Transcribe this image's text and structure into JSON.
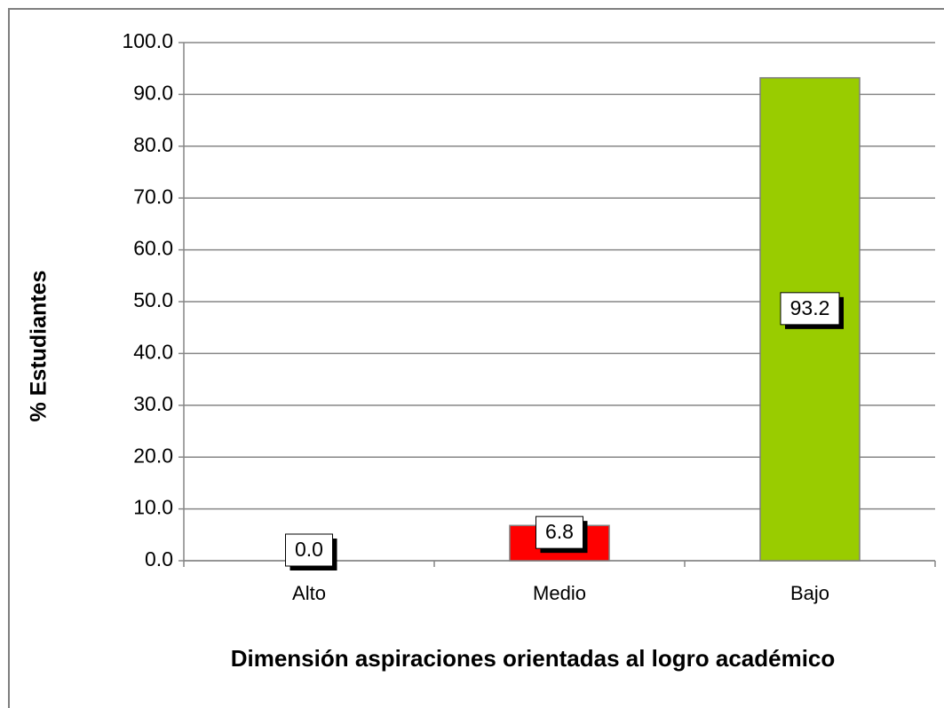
{
  "chart_data": {
    "type": "bar",
    "x_label": "Dimensión aspiraciones orientadas al logro académico",
    "y_label": "% Estudiantes",
    "categories": [
      "Alto",
      "Medio",
      "Bajo"
    ],
    "values": [
      0,
      6.8,
      93.2
    ],
    "value_labels": [
      "0.0",
      "6.8",
      "93.2"
    ],
    "colors": [
      "#ffffff",
      "#ff0000",
      "#99cc00"
    ],
    "ylim": [
      0,
      100
    ],
    "yticks": [
      {
        "value": 0,
        "label": "0.0"
      },
      {
        "value": 10,
        "label": "10.0"
      },
      {
        "value": 20,
        "label": "20.0"
      },
      {
        "value": 30,
        "label": "30.0"
      },
      {
        "value": 40,
        "label": "40.0"
      },
      {
        "value": 50,
        "label": "50.0"
      },
      {
        "value": 60,
        "label": "60.0"
      },
      {
        "value": 70,
        "label": "70.0"
      },
      {
        "value": 80,
        "label": "80.0"
      },
      {
        "value": 90,
        "label": "90.0"
      },
      {
        "value": 100,
        "label": "100.0"
      }
    ],
    "grid": true
  }
}
